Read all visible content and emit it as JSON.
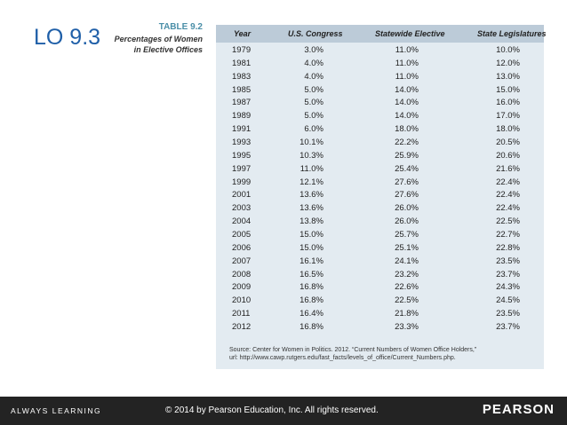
{
  "slide_label": "LO 9.3",
  "caption": {
    "number": "TABLE 9.2",
    "title_lines": [
      "Percentages of Women",
      "in Elective Offices"
    ]
  },
  "table": {
    "header": [
      "Year",
      "U.S. Congress",
      "Statewide Elective",
      "State Legislatures"
    ],
    "rows": [
      [
        "1979",
        "3.0%",
        "11.0%",
        "10.0%"
      ],
      [
        "1981",
        "4.0%",
        "11.0%",
        "12.0%"
      ],
      [
        "1983",
        "4.0%",
        "11.0%",
        "13.0%"
      ],
      [
        "1985",
        "5.0%",
        "14.0%",
        "15.0%"
      ],
      [
        "1987",
        "5.0%",
        "14.0%",
        "16.0%"
      ],
      [
        "1989",
        "5.0%",
        "14.0%",
        "17.0%"
      ],
      [
        "1991",
        "6.0%",
        "18.0%",
        "18.0%"
      ],
      [
        "1993",
        "10.1%",
        "22.2%",
        "20.5%"
      ],
      [
        "1995",
        "10.3%",
        "25.9%",
        "20.6%"
      ],
      [
        "1997",
        "11.0%",
        "25.4%",
        "21.6%"
      ],
      [
        "1999",
        "12.1%",
        "27.6%",
        "22.4%"
      ],
      [
        "2001",
        "13.6%",
        "27.6%",
        "22.4%"
      ],
      [
        "2003",
        "13.6%",
        "26.0%",
        "22.4%"
      ],
      [
        "2004",
        "13.8%",
        "26.0%",
        "22.5%"
      ],
      [
        "2005",
        "15.0%",
        "25.7%",
        "22.7%"
      ],
      [
        "2006",
        "15.0%",
        "25.1%",
        "22.8%"
      ],
      [
        "2007",
        "16.1%",
        "24.1%",
        "23.5%"
      ],
      [
        "2008",
        "16.5%",
        "23.2%",
        "23.7%"
      ],
      [
        "2009",
        "16.8%",
        "22.6%",
        "24.3%"
      ],
      [
        "2010",
        "16.8%",
        "22.5%",
        "24.5%"
      ],
      [
        "2011",
        "16.4%",
        "21.8%",
        "23.5%"
      ],
      [
        "2012",
        "16.8%",
        "23.3%",
        "23.7%"
      ]
    ],
    "source_lines": [
      "Source: Center for Women in Politics. 2012. “Current Numbers of Women Office Holders,”",
      "url: http://www.cawp.rutgers.edu/fast_facts/levels_of_office/Current_Numbers.php."
    ]
  },
  "footer": {
    "left": "ALWAYS LEARNING",
    "center": "© 2014 by Pearson Education, Inc. All rights reserved.",
    "right": "PEARSON"
  }
}
